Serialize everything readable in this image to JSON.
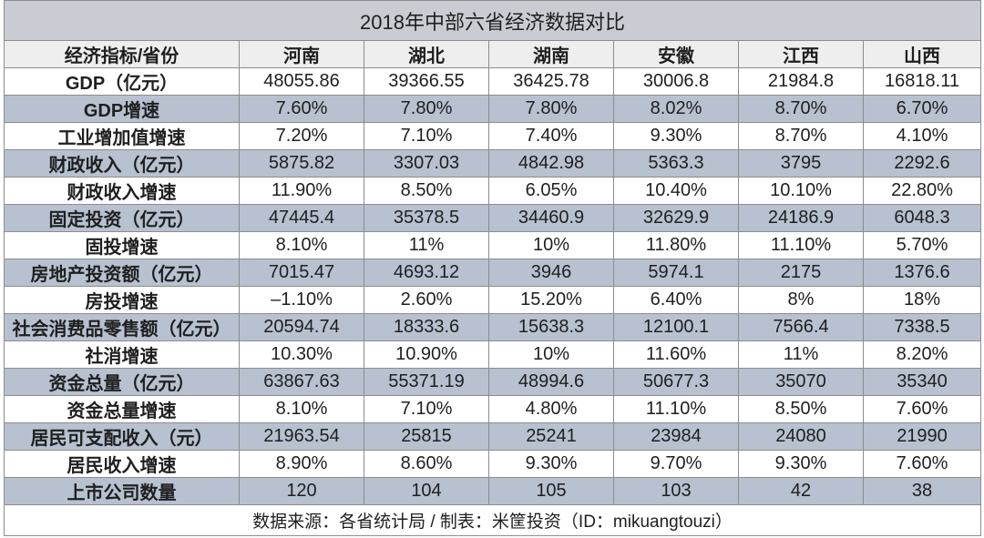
{
  "colors": {
    "title_background": "#c9ccd2",
    "band_background": "#b7c1d0",
    "header_background": "#eeeeee",
    "grid_line": "#8c8c8c",
    "text": "#1f1f1f"
  },
  "chart_data": {
    "type": "table",
    "title": "2018年中部六省经济数据对比",
    "columns": [
      "经济指标/省份",
      "河南",
      "湖北",
      "湖南",
      "安徽",
      "江西",
      "山西"
    ],
    "rows": [
      [
        "GDP（亿元）",
        "48055.86",
        "39366.55",
        "36425.78",
        "30006.8",
        "21984.8",
        "16818.11"
      ],
      [
        "GDP增速",
        "7.60%",
        "7.80%",
        "7.80%",
        "8.02%",
        "8.70%",
        "6.70%"
      ],
      [
        "工业增加值增速",
        "7.20%",
        "7.10%",
        "7.40%",
        "9.30%",
        "8.70%",
        "4.10%"
      ],
      [
        "财政收入（亿元）",
        "5875.82",
        "3307.03",
        "4842.98",
        "5363.3",
        "3795",
        "2292.6"
      ],
      [
        "财政收入增速",
        "11.90%",
        "8.50%",
        "6.05%",
        "10.40%",
        "10.10%",
        "22.80%"
      ],
      [
        "固定投资（亿元）",
        "47445.4",
        "35378.5",
        "34460.9",
        "32629.9",
        "24186.9",
        "6048.3"
      ],
      [
        "固投增速",
        "8.10%",
        "11%",
        "10%",
        "11.80%",
        "11.10%",
        "5.70%"
      ],
      [
        "房地产投资额（亿元）",
        "7015.47",
        "4693.12",
        "3946",
        "5974.1",
        "2175",
        "1376.6"
      ],
      [
        "房投增速",
        "–1.10%",
        "2.60%",
        "15.20%",
        "6.40%",
        "8%",
        "18%"
      ],
      [
        "社会消费品零售额（亿元）",
        "20594.74",
        "18333.6",
        "15638.3",
        "12100.1",
        "7566.4",
        "7338.5"
      ],
      [
        "社消增速",
        "10.30%",
        "10.90%",
        "10%",
        "11.60%",
        "11%",
        "8.20%"
      ],
      [
        "资金总量（亿元）",
        "63867.63",
        "55371.19",
        "48994.6",
        "50677.3",
        "35070",
        "35340"
      ],
      [
        "资金总量增速",
        "8.10%",
        "7.10%",
        "4.80%",
        "11.10%",
        "8.50%",
        "7.60%"
      ],
      [
        "居民可支配收入（元）",
        "21963.54",
        "25815",
        "25241",
        "23984",
        "24080",
        "21990"
      ],
      [
        "居民收入增速",
        "8.90%",
        "8.60%",
        "9.30%",
        "9.70%",
        "9.30%",
        "7.60%"
      ],
      [
        "上市公司数量",
        "120",
        "104",
        "105",
        "103",
        "42",
        "38"
      ]
    ],
    "source": "数据来源：各省统计局 / 制表：米筐投资（ID：mikuangtouzi）"
  }
}
